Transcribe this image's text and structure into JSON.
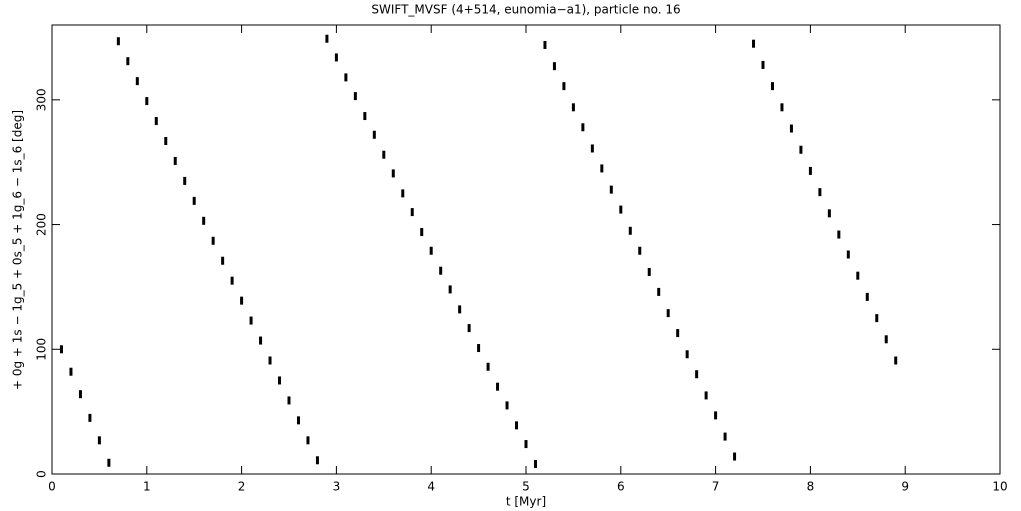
{
  "chart_data": {
    "type": "scatter",
    "title": "SWIFT_MVSF (4+514, eunomia−a1), particle no. 16",
    "x_label": "t [Myr]",
    "y_label": "+ 0g + 1s − 1g_5 + 0s_5 + 1g_6 − 1s_6 [deg]",
    "xlim": [
      0,
      10
    ],
    "ylim": [
      0,
      360
    ],
    "xticks": [
      0,
      1,
      2,
      3,
      4,
      5,
      6,
      7,
      8,
      9,
      10
    ],
    "yticks": [
      0,
      100,
      200,
      300
    ],
    "color": "#000000",
    "x": [
      0.1,
      0.2,
      0.3,
      0.4,
      0.5,
      0.6,
      0.7,
      0.8,
      0.9,
      1.0,
      1.1,
      1.2,
      1.3,
      1.4,
      1.5,
      1.6,
      1.7,
      1.8,
      1.9,
      2.0,
      2.1,
      2.2,
      2.3,
      2.4,
      2.5,
      2.6,
      2.7,
      2.8,
      2.9,
      3.0,
      3.1,
      3.2,
      3.3,
      3.4,
      3.5,
      3.6,
      3.7,
      3.8,
      3.9,
      4.0,
      4.1,
      4.2,
      4.3,
      4.4,
      4.5,
      4.6,
      4.7,
      4.8,
      4.9,
      5.0,
      5.1,
      5.2,
      5.3,
      5.4,
      5.5,
      5.6,
      5.7,
      5.8,
      5.9,
      6.0,
      6.1,
      6.2,
      6.3,
      6.4,
      6.5,
      6.6,
      6.7,
      6.8,
      6.9,
      7.0,
      7.1,
      7.2,
      7.4,
      7.5,
      7.6,
      7.7,
      7.8,
      7.9,
      8.0,
      8.1,
      8.2,
      8.3,
      8.4,
      8.5,
      8.6,
      8.7,
      8.8,
      8.9
    ],
    "values": [
      100,
      82,
      64,
      45,
      27,
      9,
      347,
      331,
      315,
      299,
      283,
      267,
      251,
      235,
      219,
      203,
      187,
      171,
      155,
      139,
      123,
      107,
      91,
      75,
      59,
      43,
      27,
      11,
      349,
      334,
      318,
      303,
      287,
      272,
      256,
      241,
      225,
      210,
      194,
      179,
      163,
      148,
      132,
      117,
      101,
      86,
      70,
      55,
      39,
      24,
      8,
      344,
      327,
      311,
      294,
      278,
      261,
      245,
      228,
      212,
      195,
      179,
      162,
      146,
      129,
      113,
      96,
      80,
      63,
      47,
      30,
      14,
      345,
      328,
      311,
      294,
      277,
      260,
      243,
      226,
      209,
      192,
      176,
      159,
      142,
      125,
      108,
      91
    ]
  }
}
